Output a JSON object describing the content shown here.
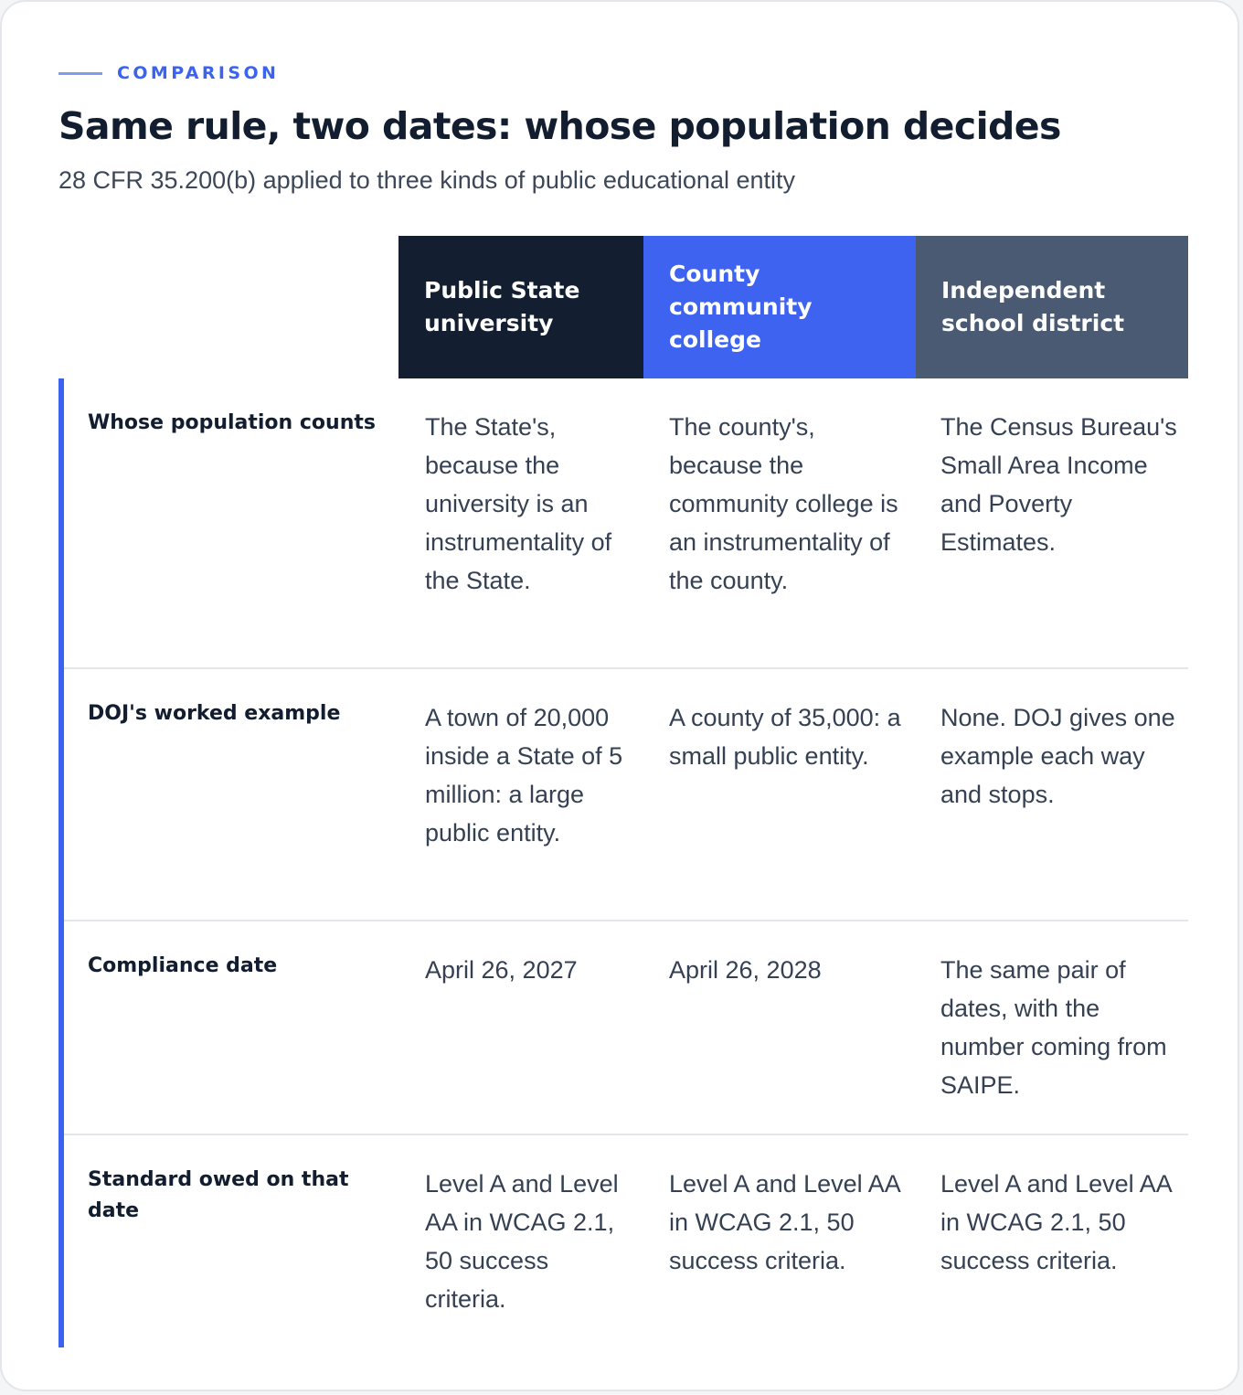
{
  "eyebrow": "COMPARISON",
  "title": "Same rule, two dates: whose population decides",
  "subtitle": "28 CFR 35.200(b) applied to three kinds of public educational entity",
  "columns": [
    {
      "label": "Public State university",
      "color": "#131e30"
    },
    {
      "label": "County community college",
      "color": "#3d63f0"
    },
    {
      "label": "Independent school district",
      "color": "#4a5a72"
    }
  ],
  "rows": [
    {
      "label": "Whose population counts",
      "cells": [
        "The State's, because the university is an instrumentality of the State.",
        "The county's, because the community college is an instrumentality of the county.",
        "The Census Bureau's Small Area Income and Poverty Estimates."
      ]
    },
    {
      "label": "DOJ's worked example",
      "cells": [
        "A town of 20,000 inside a State of 5 million: a large public entity.",
        "A county of 35,000: a small public entity.",
        "None. DOJ gives one example each way and stops."
      ]
    },
    {
      "label": "Compliance date",
      "cells": [
        "April 26, 2027",
        "April 26, 2028",
        "The same pair of dates, with the number coming from SAIPE."
      ]
    },
    {
      "label": "Standard owed on that date",
      "cells": [
        "Level A and Level AA in WCAG 2.1, 50 success criteria.",
        "Level A and Level AA in WCAG 2.1, 50 success criteria.",
        "Level A and Level AA in WCAG 2.1, 50 success criteria."
      ]
    }
  ],
  "colors": {
    "accent": "#3b63f0",
    "heading": "#121d2f",
    "body_text": "#354153",
    "divider": "#e3e6ea"
  }
}
